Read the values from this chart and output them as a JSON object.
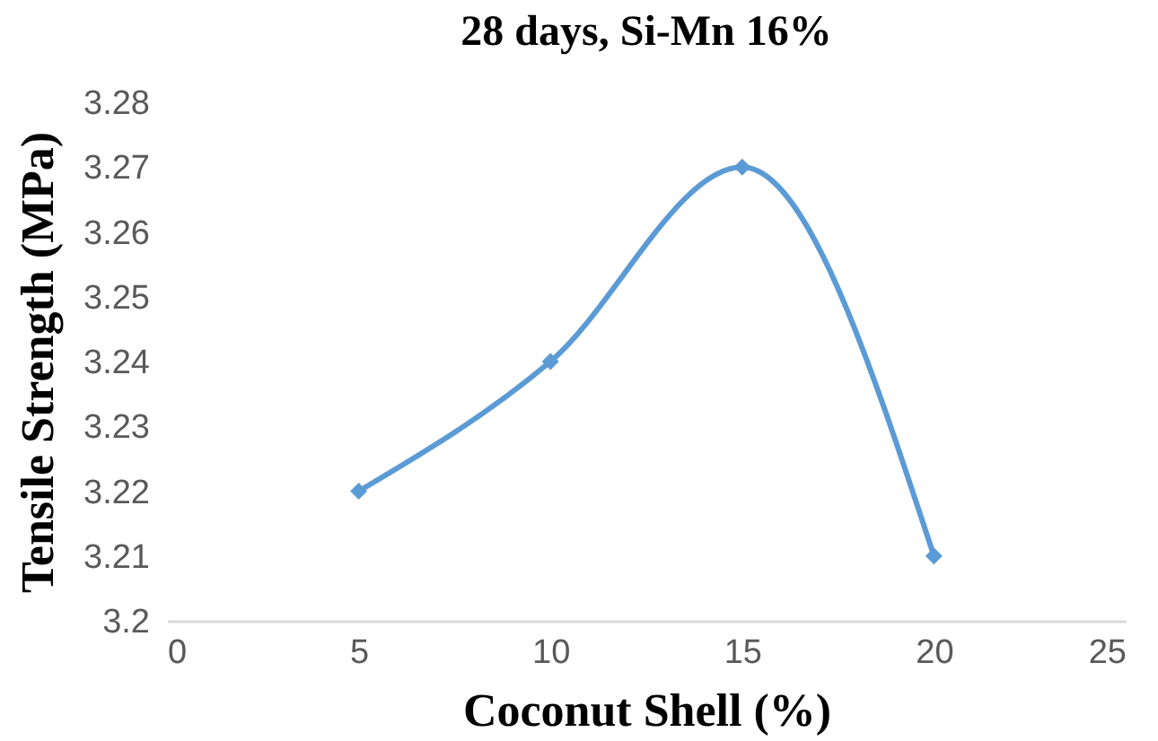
{
  "chart_data": {
    "type": "line",
    "title": "28 days, Si-Mn 16%",
    "xlabel": "Coconut Shell (%)",
    "ylabel": "Tensile Strength (MPa)",
    "x": [
      5,
      10,
      15,
      20
    ],
    "series": [
      {
        "color": "#5b9bd5",
        "values": [
          3.22,
          3.24,
          3.27,
          3.21
        ]
      }
    ],
    "xlim": [
      0,
      25
    ],
    "xticks": [
      0,
      5,
      10,
      15,
      20,
      25
    ],
    "ylim": [
      3.2,
      3.28
    ],
    "yticks": [
      3.2,
      3.21,
      3.22,
      3.23,
      3.24,
      3.25,
      3.26,
      3.27,
      3.28
    ],
    "grid": false,
    "legend": false,
    "marker": "diamond",
    "line_style": "solid"
  }
}
